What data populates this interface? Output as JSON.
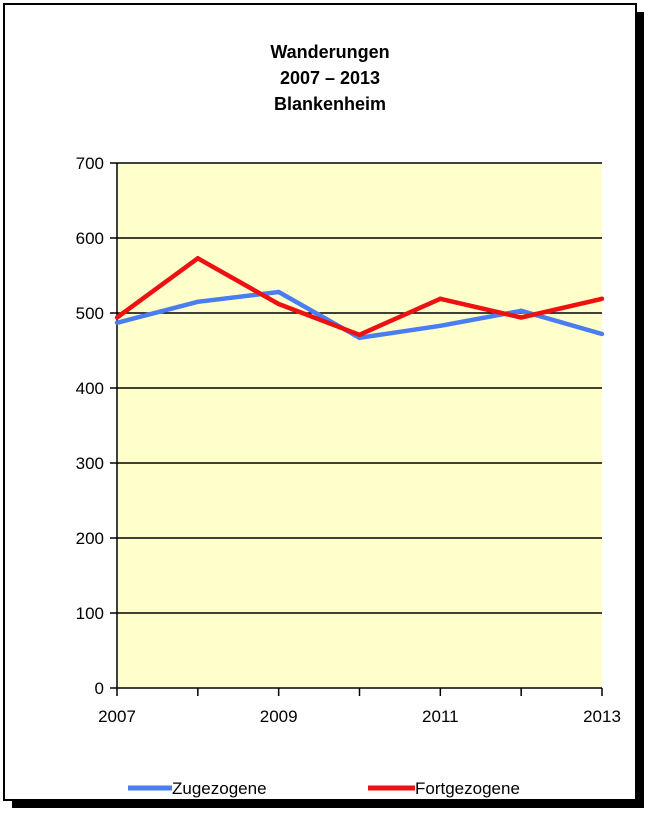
{
  "chart_data": {
    "type": "line",
    "title_lines": [
      "Wanderungen",
      "2007 – 2013",
      "Blankenheim"
    ],
    "x": [
      2007,
      2008,
      2009,
      2010,
      2011,
      2012,
      2013
    ],
    "x_tick_labels": [
      "2007",
      "2009",
      "2011",
      "2013"
    ],
    "y_tick_labels": [
      "0",
      "100",
      "200",
      "300",
      "400",
      "500",
      "600",
      "700"
    ],
    "ylim": [
      0,
      700
    ],
    "grid": true,
    "legend_position": "bottom",
    "plot_background": "#ffffcc",
    "series": [
      {
        "name": "Zugezogene",
        "color": "#4a7df0",
        "values": [
          487,
          515,
          528,
          467,
          483,
          503,
          472
        ]
      },
      {
        "name": "Fortgezogene",
        "color": "#ee1111",
        "values": [
          494,
          573,
          512,
          471,
          519,
          494,
          519
        ]
      }
    ]
  }
}
